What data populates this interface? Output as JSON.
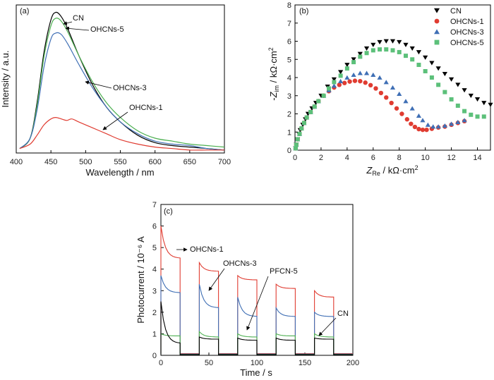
{
  "chart_data": [
    {
      "panel": "(a)",
      "type": "line",
      "xlabel": "Wavelength / nm",
      "ylabel": "Intensity / a.u.",
      "xlim": [
        400,
        700
      ],
      "ylim": [
        0,
        100
      ],
      "xticks": [
        "400",
        "450",
        "500",
        "550",
        "600",
        "650",
        "700"
      ],
      "grid": false,
      "series": [
        {
          "name": "CN",
          "color": "#000000",
          "x": [
            405,
            420,
            430,
            440,
            450,
            457,
            465,
            475,
            490,
            510,
            530,
            550,
            575,
            600,
            625,
            650,
            675,
            700
          ],
          "y": [
            3,
            10,
            34,
            68,
            90,
            95,
            92,
            83,
            66,
            46,
            31,
            21,
            12,
            7,
            5,
            4,
            3,
            2
          ]
        },
        {
          "name": "OHCNs-5",
          "color": "#4caf50",
          "x": [
            405,
            420,
            430,
            440,
            450,
            457,
            465,
            475,
            490,
            510,
            530,
            550,
            575,
            600,
            625,
            650,
            675,
            700
          ],
          "y": [
            3,
            10,
            32,
            65,
            86,
            91,
            89,
            81,
            66,
            48,
            34,
            24,
            15,
            10,
            8,
            6,
            5,
            4
          ]
        },
        {
          "name": "OHCNs-3",
          "color": "#3f6fb5",
          "x": [
            405,
            420,
            430,
            440,
            450,
            457,
            465,
            475,
            490,
            510,
            530,
            550,
            575,
            600,
            625,
            650,
            675,
            700
          ],
          "y": [
            3,
            10,
            29,
            58,
            77,
            81,
            80,
            73,
            60,
            44,
            31,
            21,
            13,
            8,
            6,
            5,
            3,
            2
          ]
        },
        {
          "name": "OHCNs-1",
          "color": "#e03c31",
          "x": [
            405,
            420,
            430,
            440,
            450,
            457,
            465,
            473,
            480,
            490,
            510,
            530,
            550,
            575,
            600,
            625,
            650,
            675,
            700
          ],
          "y": [
            3,
            6,
            12,
            19,
            23,
            24,
            23,
            22,
            23,
            21,
            17,
            13,
            9,
            6,
            4,
            3,
            2,
            2,
            2
          ]
        }
      ],
      "annotations": [
        "CN",
        "OHCNs-5",
        "OHCNs-3",
        "OHCNs-1"
      ]
    },
    {
      "panel": "(b)",
      "type": "scatter",
      "xlabel": "Z_Re / kΩ·cm²",
      "ylabel": "-Z_im / kΩ·cm²",
      "xlim": [
        0,
        15
      ],
      "ylim": [
        0,
        8
      ],
      "xticks": [
        "0",
        "2",
        "4",
        "6",
        "8",
        "10",
        "12",
        "14"
      ],
      "yticks": [
        "0",
        "1",
        "2",
        "3",
        "4",
        "5",
        "6",
        "7",
        "8"
      ],
      "legend": "top-right",
      "series": [
        {
          "name": "CN",
          "color": "#000000",
          "marker": "triangle-down",
          "x": [
            0.05,
            0.1,
            0.2,
            0.3,
            0.4,
            0.6,
            0.8,
            1.0,
            1.3,
            1.6,
            2.0,
            2.5,
            3.0,
            3.5,
            4.0,
            4.5,
            5.0,
            5.5,
            6.0,
            6.5,
            7.0,
            7.5,
            8.0,
            8.5,
            9.0,
            9.5,
            10.0,
            10.5,
            11.0,
            11.5,
            12.0,
            12.5,
            13.0,
            13.5,
            14.0,
            14.5,
            15.0
          ],
          "y": [
            0.1,
            0.3,
            0.6,
            0.9,
            1.1,
            1.4,
            1.7,
            2.0,
            2.3,
            2.6,
            3.0,
            3.5,
            3.9,
            4.3,
            4.7,
            5.0,
            5.3,
            5.6,
            5.8,
            5.95,
            6.0,
            6.0,
            5.95,
            5.8,
            5.6,
            5.4,
            5.1,
            4.8,
            4.5,
            4.2,
            3.9,
            3.6,
            3.3,
            3.0,
            2.8,
            2.6,
            2.5
          ]
        },
        {
          "name": "OHCNs-1",
          "color": "#e03c31",
          "marker": "circle",
          "x": [
            0.05,
            0.1,
            0.2,
            0.35,
            0.5,
            0.7,
            0.9,
            1.2,
            1.5,
            1.8,
            2.2,
            2.6,
            3.0,
            3.4,
            3.8,
            4.2,
            4.6,
            5.0,
            5.4,
            5.8,
            6.2,
            6.6,
            7.0,
            7.4,
            7.8,
            8.2,
            8.6,
            8.9,
            9.2,
            9.5,
            9.8,
            10.1,
            10.5,
            11.0,
            11.5,
            12.0,
            12.5,
            13.0
          ],
          "y": [
            0.1,
            0.3,
            0.6,
            0.9,
            1.2,
            1.5,
            1.8,
            2.1,
            2.4,
            2.7,
            3.0,
            3.25,
            3.45,
            3.6,
            3.7,
            3.78,
            3.82,
            3.8,
            3.72,
            3.58,
            3.4,
            3.15,
            2.9,
            2.6,
            2.3,
            2.0,
            1.7,
            1.45,
            1.28,
            1.16,
            1.12,
            1.12,
            1.18,
            1.25,
            1.3,
            1.4,
            1.5,
            1.6
          ]
        },
        {
          "name": "OHCNs-3",
          "color": "#3f6fb5",
          "marker": "triangle-up",
          "x": [
            0.05,
            0.1,
            0.2,
            0.35,
            0.5,
            0.7,
            0.9,
            1.2,
            1.5,
            1.8,
            2.2,
            2.6,
            3.0,
            3.5,
            4.0,
            4.5,
            5.0,
            5.5,
            6.0,
            6.5,
            7.0,
            7.5,
            8.0,
            8.5,
            9.0,
            9.5,
            9.8,
            10.2,
            10.6,
            11.0,
            11.5,
            12.0,
            12.5,
            13.0
          ],
          "y": [
            0.1,
            0.3,
            0.6,
            0.9,
            1.2,
            1.5,
            1.8,
            2.1,
            2.4,
            2.7,
            3.0,
            3.3,
            3.55,
            3.8,
            4.0,
            4.15,
            4.25,
            4.25,
            4.15,
            4.0,
            3.75,
            3.45,
            3.1,
            2.7,
            2.3,
            1.9,
            1.65,
            1.4,
            1.3,
            1.3,
            1.35,
            1.45,
            1.55,
            1.65
          ]
        },
        {
          "name": "OHCNs-5",
          "color": "#5cc07a",
          "marker": "square",
          "x": [
            0.05,
            0.1,
            0.2,
            0.35,
            0.5,
            0.7,
            0.9,
            1.2,
            1.5,
            1.8,
            2.2,
            2.6,
            3.0,
            3.5,
            4.0,
            4.5,
            5.0,
            5.5,
            6.0,
            6.5,
            7.0,
            7.5,
            8.0,
            8.5,
            9.0,
            9.5,
            10.0,
            10.5,
            11.0,
            11.5,
            12.0,
            12.5,
            13.0,
            13.5,
            14.0,
            14.5
          ],
          "y": [
            0.1,
            0.3,
            0.6,
            0.9,
            1.2,
            1.5,
            1.8,
            2.1,
            2.4,
            2.7,
            3.0,
            3.4,
            3.75,
            4.1,
            4.5,
            4.85,
            5.15,
            5.35,
            5.5,
            5.55,
            5.55,
            5.5,
            5.4,
            5.2,
            5.0,
            4.7,
            4.35,
            4.0,
            3.6,
            3.2,
            2.8,
            2.45,
            2.15,
            1.95,
            1.85,
            1.85
          ]
        }
      ]
    },
    {
      "panel": "(c)",
      "type": "line",
      "xlabel": "Time / s",
      "ylabel": "Photocurrent / 10⁻⁶ A",
      "xlim": [
        0,
        200
      ],
      "ylim": [
        0,
        7
      ],
      "xticks": [
        "0",
        "50",
        "100",
        "150",
        "200"
      ],
      "yticks": [
        "0",
        "1",
        "2",
        "3",
        "4",
        "5",
        "6",
        "7"
      ],
      "on_periods": [
        [
          0,
          20
        ],
        [
          40,
          60
        ],
        [
          80,
          100
        ],
        [
          120,
          140
        ],
        [
          160,
          180
        ]
      ],
      "series": [
        {
          "name": "OHCNs-1",
          "color": "#e03c31",
          "peaks": [
            6.0,
            4.3,
            3.7,
            3.3,
            3.0
          ],
          "steady": [
            4.5,
            3.9,
            3.5,
            3.1,
            2.7
          ],
          "dark": 0.08
        },
        {
          "name": "OHCNs-3",
          "color": "#3f6fb5",
          "peaks": [
            3.7,
            3.3,
            2.7,
            2.2,
            2.0
          ],
          "steady": [
            2.9,
            2.2,
            1.8,
            1.8,
            1.8
          ],
          "dark": 0.06
        },
        {
          "name": "PFCN-5",
          "color": "#4caf50",
          "peaks": [
            1.0,
            1.1,
            1.0,
            1.0,
            1.0
          ],
          "steady": [
            0.9,
            0.85,
            0.85,
            0.9,
            0.85
          ],
          "dark": 0.04
        },
        {
          "name": "CN",
          "color": "#000000",
          "peaks": [
            2.5,
            0.85,
            0.8,
            0.8,
            0.8
          ],
          "steady": [
            0.55,
            0.75,
            0.7,
            0.7,
            0.75
          ],
          "dark": 0.03
        }
      ],
      "annotations": [
        "OHCNs-1",
        "OHCNs-3",
        "PFCN-5",
        "CN"
      ]
    }
  ]
}
